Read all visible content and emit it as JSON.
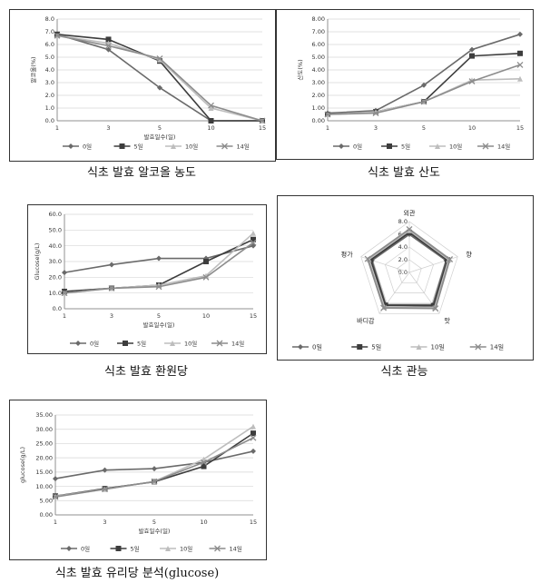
{
  "page": {
    "background": "#ffffff",
    "border_color": "#333333",
    "line_color": "#666666"
  },
  "chart_data": [
    {
      "type": "line",
      "title": "",
      "caption": "식초 발효 알코올 농도",
      "xlabel": "발효일수(일)",
      "ylabel": "알코올(%)",
      "categories": [
        "1",
        "3",
        "5",
        "10",
        "15"
      ],
      "ylim": [
        0,
        8
      ],
      "yticks": [
        "0.0",
        "1.0",
        "2.0",
        "3.0",
        "4.0",
        "5.0",
        "6.0",
        "7.0",
        "8.0"
      ],
      "grid": true,
      "legend": "bottom",
      "series": [
        {
          "name": "0일",
          "values": [
            6.8,
            5.6,
            2.6,
            0.0,
            0.0
          ]
        },
        {
          "name": "5일",
          "values": [
            6.8,
            6.4,
            4.7,
            0.0,
            0.0
          ]
        },
        {
          "name": "10일",
          "values": [
            6.7,
            6.1,
            4.8,
            1.0,
            0.0
          ]
        },
        {
          "name": "14일",
          "values": [
            6.7,
            5.9,
            4.9,
            1.2,
            0.0
          ]
        }
      ]
    },
    {
      "type": "line",
      "title": "",
      "caption": "식초 발효 산도",
      "xlabel": "",
      "ylabel": "산도(%)",
      "categories": [
        "1",
        "3",
        "5",
        "10",
        "15"
      ],
      "ylim": [
        0,
        8
      ],
      "yticks": [
        "0.00",
        "1.00",
        "2.00",
        "3.00",
        "4.00",
        "5.00",
        "6.00",
        "7.00",
        "8.00"
      ],
      "grid": true,
      "legend": "bottom",
      "series": [
        {
          "name": "0일",
          "values": [
            0.6,
            0.8,
            2.8,
            5.6,
            6.8
          ]
        },
        {
          "name": "5일",
          "values": [
            0.5,
            0.7,
            1.5,
            5.1,
            5.3
          ]
        },
        {
          "name": "10일",
          "values": [
            0.5,
            0.7,
            1.5,
            3.2,
            3.3
          ]
        },
        {
          "name": "14일",
          "values": [
            0.5,
            0.6,
            1.5,
            3.1,
            4.4
          ]
        }
      ]
    },
    {
      "type": "line",
      "title": "",
      "caption": "식초 발효 환원당",
      "xlabel": "발효일수(일)",
      "ylabel": "Glucose(g/L)",
      "categories": [
        "1",
        "3",
        "5",
        "10",
        "15"
      ],
      "ylim": [
        0,
        60
      ],
      "yticks": [
        "0.0",
        "10.0",
        "20.0",
        "30.0",
        "40.0",
        "50.0",
        "60.0"
      ],
      "grid": true,
      "legend": "bottom",
      "series": [
        {
          "name": "0일",
          "values": [
            23,
            28,
            32,
            32,
            40
          ]
        },
        {
          "name": "5일",
          "values": [
            11,
            13,
            15,
            30,
            44
          ]
        },
        {
          "name": "10일",
          "values": [
            10,
            13,
            15,
            21,
            48
          ]
        },
        {
          "name": "14일",
          "values": [
            10,
            13,
            14,
            20,
            42
          ]
        }
      ]
    },
    {
      "type": "radar",
      "title": "",
      "caption": "식초 관능",
      "axes": [
        "외관",
        "향",
        "맛",
        "바디감",
        "평가"
      ],
      "rlim": [
        0,
        8
      ],
      "rticks": [
        "0.0",
        "2.0",
        "4.0",
        "6.0",
        "8.0"
      ],
      "legend": "bottom",
      "series": [
        {
          "name": "0일",
          "values": [
            6.0,
            6.1,
            6.3,
            6.3,
            6.2
          ]
        },
        {
          "name": "5일",
          "values": [
            6.3,
            6.3,
            6.5,
            6.4,
            6.4
          ]
        },
        {
          "name": "10일",
          "values": [
            6.6,
            6.5,
            6.8,
            6.7,
            6.7
          ]
        },
        {
          "name": "14일",
          "values": [
            6.8,
            6.7,
            7.0,
            6.9,
            6.9
          ]
        }
      ]
    },
    {
      "type": "line",
      "title": "",
      "caption": "식초 발효 유리당 분석(glucose)",
      "xlabel": "발효일수(일)",
      "ylabel": "glucose(g/L)",
      "categories": [
        "1",
        "3",
        "5",
        "10",
        "15"
      ],
      "ylim": [
        0,
        35
      ],
      "yticks": [
        "0.00",
        "5.00",
        "10.00",
        "15.00",
        "20.00",
        "25.00",
        "30.00",
        "35.00"
      ],
      "grid": true,
      "legend": "bottom",
      "series": [
        {
          "name": "0일",
          "values": [
            12.7,
            15.7,
            16.2,
            18.4,
            22.3
          ]
        },
        {
          "name": "5일",
          "values": [
            6.6,
            9.2,
            11.6,
            17.0,
            28.6
          ]
        },
        {
          "name": "10일",
          "values": [
            6.5,
            9.0,
            11.7,
            19.5,
            31.0
          ]
        },
        {
          "name": "14일",
          "values": [
            6.3,
            9.0,
            11.7,
            18.4,
            27.0
          ]
        }
      ]
    }
  ]
}
